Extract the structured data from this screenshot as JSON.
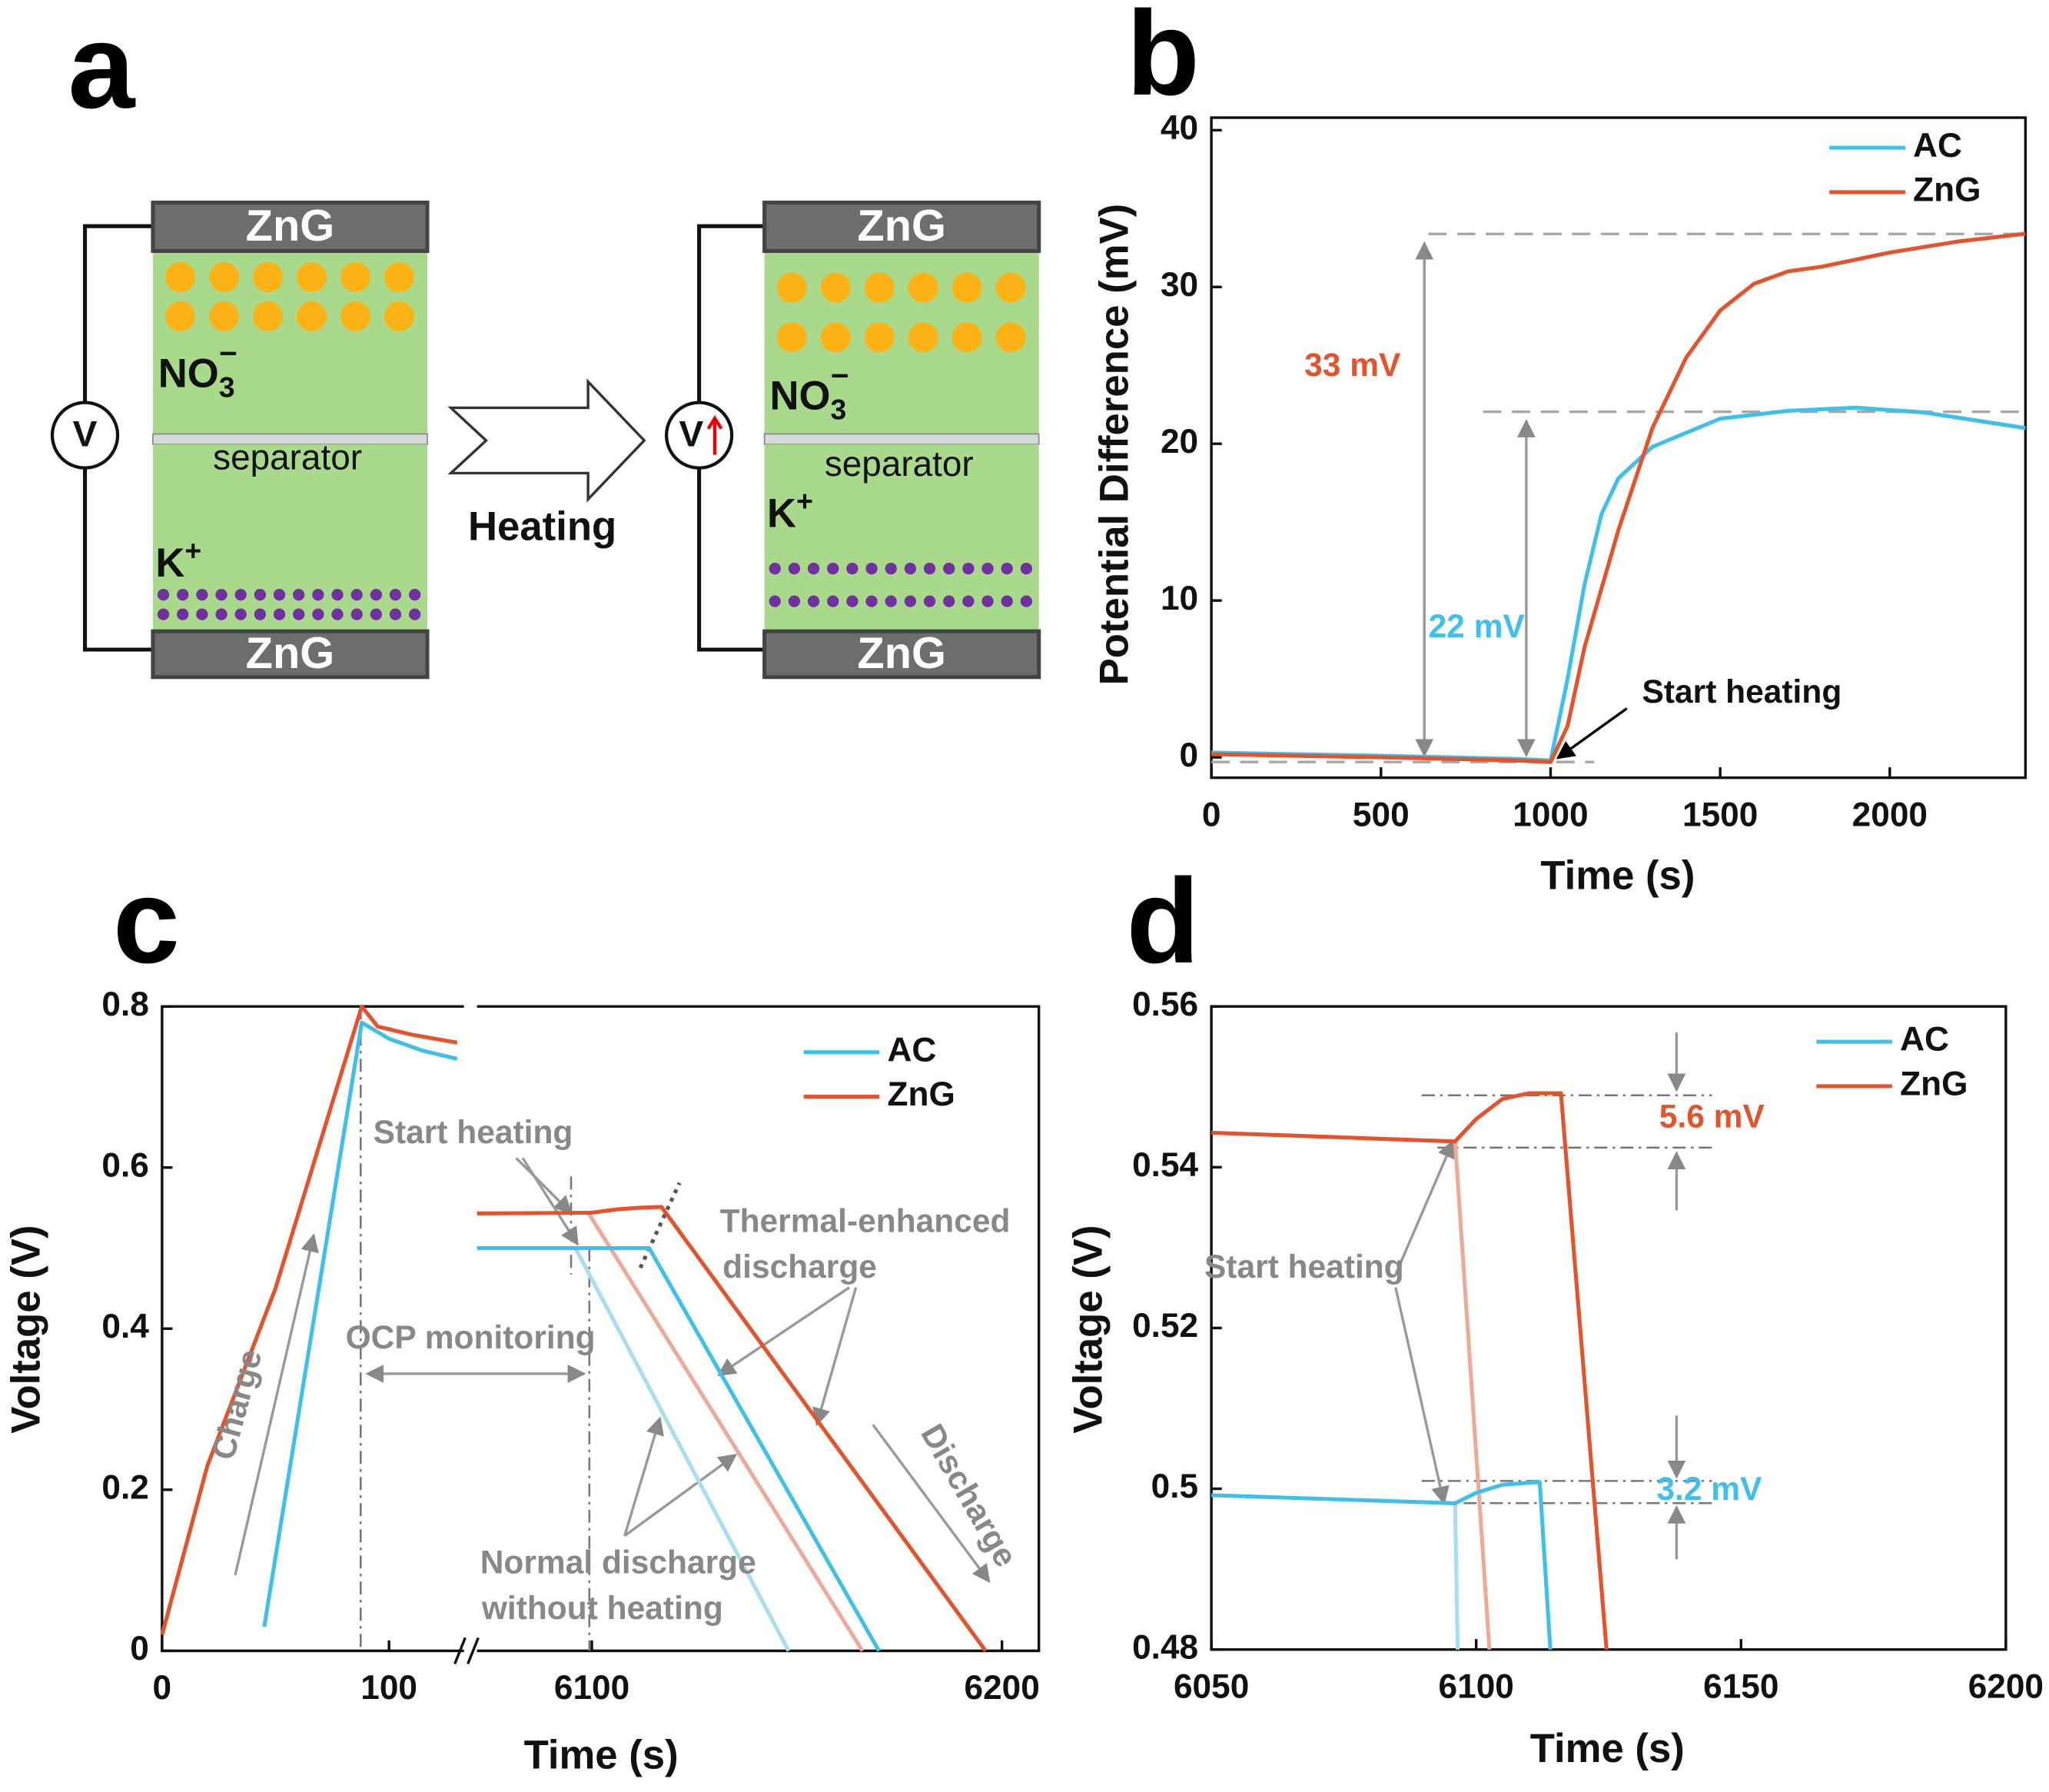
{
  "diagram": {
    "label": "a",
    "arrow": "Heating",
    "cells": [
      {
        "top_electrode": "ZnG",
        "anion": {
          "base": "NO",
          "sub": "3",
          "sup": "−"
        },
        "separator": "separator",
        "cation": {
          "base": "K",
          "sup": "+"
        },
        "bottom_electrode": "ZnG",
        "meter": "V"
      },
      {
        "top_electrode": "ZnG",
        "anion": {
          "base": "NO",
          "sub": "3",
          "sup": "−"
        },
        "separator": "separator",
        "cation": {
          "base": "K",
          "sup": "+"
        },
        "bottom_electrode": "ZnG",
        "meter": "V"
      }
    ]
  },
  "chart_data": [
    {
      "type": "line",
      "panel": "b",
      "x_label": "Time (s)",
      "y_label": "Potential Difference (mV)",
      "xlim": [
        0,
        2400
      ],
      "ylim": [
        -1.3,
        40.8
      ],
      "xticks": [
        0,
        500,
        1000,
        1500,
        2000
      ],
      "yticks": [
        0,
        10,
        20,
        30,
        40
      ],
      "legend": "upper right",
      "series": [
        {
          "name": "AC",
          "color": "#3ec0ea",
          "x": [
            0,
            500,
            900,
            1000,
            1050,
            1100,
            1150,
            1200,
            1300,
            1500,
            1700,
            1900,
            2100,
            2400
          ],
          "values": [
            0.3,
            0.1,
            -0.1,
            -0.2,
            5,
            11,
            15.5,
            17.8,
            19.8,
            21.6,
            22.1,
            22.3,
            22,
            21
          ]
        },
        {
          "name": "ZnG",
          "color": "#e5532d",
          "x": [
            0,
            500,
            900,
            1000,
            1050,
            1100,
            1200,
            1300,
            1400,
            1500,
            1600,
            1700,
            1800,
            2000,
            2200,
            2400
          ],
          "values": [
            0.2,
            0,
            -0.2,
            -0.3,
            2,
            7,
            14.5,
            21,
            25.5,
            28.5,
            30.2,
            31,
            31.3,
            32.2,
            32.9,
            33.4
          ]
        }
      ],
      "annotations": [
        "33 mV",
        "22 mV",
        "Start heating"
      ]
    },
    {
      "type": "line",
      "panel": "c",
      "x_label": "Time (s)",
      "y_label": "Voltage (V)",
      "xlim": [
        [
          0,
          133
        ],
        [
          6072,
          6209
        ]
      ],
      "ylim": [
        0,
        0.8
      ],
      "xticks": [
        0,
        100,
        6100,
        6200
      ],
      "yticks": [
        0.0,
        0.2,
        0.4,
        0.6,
        0.8
      ],
      "legend": "upper right",
      "series": [
        {
          "name": "AC",
          "color": "#3ec0ea",
          "x": [
            45,
            88,
            100,
            115,
            130,
            null,
            6072,
            6114,
            6170
          ],
          "values": [
            0.03,
            0.78,
            0.76,
            0.745,
            0.735,
            null,
            0.5,
            0.5,
            0
          ]
        },
        {
          "name": "ZnG",
          "color": "#e5532d",
          "x": [
            0,
            20,
            50,
            88,
            95,
            110,
            130,
            null,
            6072,
            6100,
            6106,
            6111,
            6117,
            6196
          ],
          "values": [
            0.02,
            0.23,
            0.45,
            0.8,
            0.775,
            0.765,
            0.755,
            null,
            0.543,
            0.544,
            0.548,
            0.55,
            0.551,
            0
          ]
        },
        {
          "color": "#a8def2",
          "x": [
            6096,
            6148
          ],
          "values": [
            0.5,
            0
          ]
        },
        {
          "color": "#eeaa98",
          "x": [
            6099,
            6166
          ],
          "values": [
            0.545,
            0
          ]
        }
      ],
      "annotations": [
        "Start heating",
        "OCP monitoring",
        [
          "Thermal-enhanced",
          "discharge"
        ],
        [
          "Normal discharge",
          "without heating"
        ],
        "Charge",
        "Discharge"
      ]
    },
    {
      "type": "line",
      "panel": "d",
      "x_label": "Time (s)",
      "y_label": "Voltage (V)",
      "xlim": [
        6050,
        6200
      ],
      "ylim": [
        0.48,
        0.56
      ],
      "xticks": [
        6050,
        6100,
        6150,
        6200
      ],
      "yticks": [
        0.48,
        0.5,
        0.52,
        0.54,
        0.56
      ],
      "legend": "upper right",
      "series": [
        {
          "name": "AC",
          "color": "#3ec0ea",
          "x": [
            6050,
            6096,
            6100,
            6105,
            6111,
            6112,
            6114
          ],
          "values": [
            0.4992,
            0.4982,
            0.4995,
            0.5005,
            0.5008,
            0.5008,
            0.48
          ]
        },
        {
          "name": "ZnG",
          "color": "#e5532d",
          "x": [
            6050,
            6096,
            6100,
            6105,
            6110,
            6116,
            6124.6
          ],
          "values": [
            0.5443,
            0.5432,
            0.546,
            0.5485,
            0.5492,
            0.5492,
            0.48
          ]
        },
        {
          "color": "#a8def2",
          "x": [
            6096,
            6096.5
          ],
          "values": [
            0.4982,
            0.48
          ]
        },
        {
          "color": "#eeaa98",
          "x": [
            6096,
            6102.5
          ],
          "values": [
            0.5432,
            0.48
          ]
        }
      ],
      "annotations": [
        "5.6 mV",
        "3.2 mV",
        "Start heating"
      ]
    }
  ]
}
